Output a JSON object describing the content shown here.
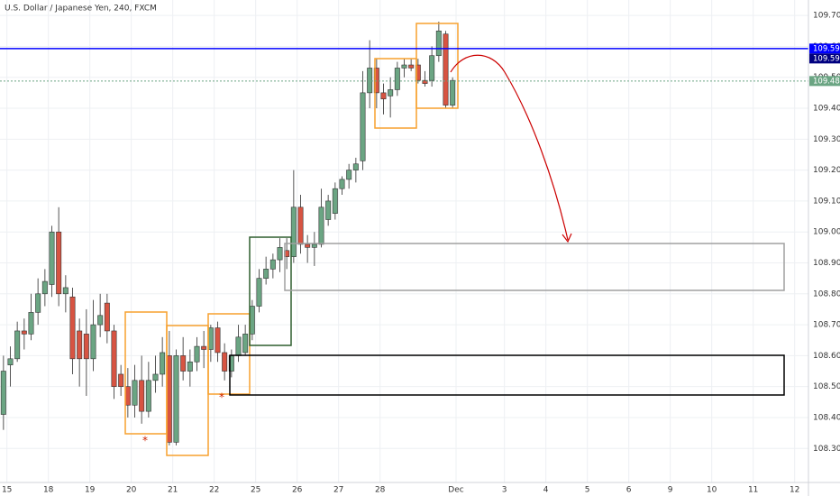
{
  "chart_data": {
    "type": "candlestick",
    "title": "U.S. Dollar / Japanese Yen, 240, FXCM",
    "up_color": "#6ba583",
    "down_color": "#d75442",
    "grid": true,
    "ylim": [
      108.19,
      109.75
    ],
    "yticks": [
      {
        "value": 108.3,
        "label": "108.300"
      },
      {
        "value": 108.4,
        "label": "108.400"
      },
      {
        "value": 108.5,
        "label": "108.500"
      },
      {
        "value": 108.6,
        "label": "108.600"
      },
      {
        "value": 108.7,
        "label": "108.700"
      },
      {
        "value": 108.8,
        "label": "108.800"
      },
      {
        "value": 108.9,
        "label": "108.900"
      },
      {
        "value": 109.0,
        "label": "109.000"
      },
      {
        "value": 109.1,
        "label": "109.100"
      },
      {
        "value": 109.2,
        "label": "109.200"
      },
      {
        "value": 109.3,
        "label": "109.300"
      },
      {
        "value": 109.4,
        "label": "109.400"
      },
      {
        "value": 109.5,
        "label": "109.500"
      },
      {
        "value": 109.6,
        "label": "109.600"
      },
      {
        "value": 109.7,
        "label": "109.700"
      }
    ],
    "xlim": [
      0,
      117
    ],
    "xticks": [
      {
        "value": 1,
        "label": "15"
      },
      {
        "value": 7,
        "label": "18"
      },
      {
        "value": 13,
        "label": "19"
      },
      {
        "value": 19,
        "label": "20"
      },
      {
        "value": 25,
        "label": "21"
      },
      {
        "value": 31,
        "label": "22"
      },
      {
        "value": 37,
        "label": "25"
      },
      {
        "value": 43,
        "label": "26"
      },
      {
        "value": 49,
        "label": "27"
      },
      {
        "value": 55,
        "label": "28"
      },
      {
        "value": 66,
        "label": "Dec"
      },
      {
        "value": 73,
        "label": "3"
      },
      {
        "value": 79,
        "label": "4"
      },
      {
        "value": 85,
        "label": "5"
      },
      {
        "value": 91,
        "label": "6"
      },
      {
        "value": 97,
        "label": "9"
      },
      {
        "value": 103,
        "label": "10"
      },
      {
        "value": 109,
        "label": "11"
      },
      {
        "value": 115,
        "label": "12"
      }
    ],
    "hlines": [
      {
        "value": 109.593,
        "color": "#0000ff"
      },
      {
        "value": 109.488,
        "color": "#6ba583"
      }
    ],
    "candles": [
      {
        "open": 108.41,
        "high": 108.6,
        "low": 108.36,
        "close": 108.55
      },
      {
        "open": 108.57,
        "high": 108.63,
        "low": 108.5,
        "close": 108.59
      },
      {
        "open": 108.59,
        "high": 108.71,
        "low": 108.58,
        "close": 108.68
      },
      {
        "open": 108.68,
        "high": 108.72,
        "low": 108.62,
        "close": 108.67
      },
      {
        "open": 108.67,
        "high": 108.8,
        "low": 108.65,
        "close": 108.74
      },
      {
        "open": 108.74,
        "high": 108.85,
        "low": 108.7,
        "close": 108.8
      },
      {
        "open": 108.8,
        "high": 108.88,
        "low": 108.76,
        "close": 108.84
      },
      {
        "open": 108.83,
        "high": 109.02,
        "low": 108.79,
        "close": 109.0
      },
      {
        "open": 109.0,
        "high": 109.08,
        "low": 108.76,
        "close": 108.8
      },
      {
        "open": 108.8,
        "high": 108.86,
        "low": 108.74,
        "close": 108.82
      },
      {
        "open": 108.79,
        "high": 108.82,
        "low": 108.54,
        "close": 108.59
      },
      {
        "open": 108.68,
        "high": 108.72,
        "low": 108.5,
        "close": 108.59
      },
      {
        "open": 108.67,
        "high": 108.75,
        "low": 108.47,
        "close": 108.59
      },
      {
        "open": 108.59,
        "high": 108.78,
        "low": 108.55,
        "close": 108.7
      },
      {
        "open": 108.7,
        "high": 108.8,
        "low": 108.66,
        "close": 108.73
      },
      {
        "open": 108.77,
        "high": 108.8,
        "low": 108.64,
        "close": 108.68
      },
      {
        "open": 108.68,
        "high": 108.7,
        "low": 108.46,
        "close": 108.5
      },
      {
        "open": 108.54,
        "high": 108.57,
        "low": 108.47,
        "close": 108.5
      },
      {
        "open": 108.5,
        "high": 108.56,
        "low": 108.4,
        "close": 108.44
      },
      {
        "open": 108.44,
        "high": 108.57,
        "low": 108.4,
        "close": 108.52
      },
      {
        "open": 108.52,
        "high": 108.6,
        "low": 108.38,
        "close": 108.42
      },
      {
        "open": 108.42,
        "high": 108.58,
        "low": 108.4,
        "close": 108.52
      },
      {
        "open": 108.52,
        "high": 108.6,
        "low": 108.48,
        "close": 108.54
      },
      {
        "open": 108.54,
        "high": 108.66,
        "low": 108.5,
        "close": 108.61
      },
      {
        "open": 108.6,
        "high": 108.68,
        "low": 108.31,
        "close": 108.32
      },
      {
        "open": 108.32,
        "high": 108.62,
        "low": 108.31,
        "close": 108.6
      },
      {
        "open": 108.6,
        "high": 108.66,
        "low": 108.52,
        "close": 108.55
      },
      {
        "open": 108.55,
        "high": 108.62,
        "low": 108.5,
        "close": 108.58
      },
      {
        "open": 108.58,
        "high": 108.66,
        "low": 108.55,
        "close": 108.63
      },
      {
        "open": 108.63,
        "high": 108.68,
        "low": 108.56,
        "close": 108.62
      },
      {
        "open": 108.62,
        "high": 108.7,
        "low": 108.58,
        "close": 108.69
      },
      {
        "open": 108.69,
        "high": 108.71,
        "low": 108.58,
        "close": 108.61
      },
      {
        "open": 108.61,
        "high": 108.64,
        "low": 108.52,
        "close": 108.55
      },
      {
        "open": 108.55,
        "high": 108.62,
        "low": 108.53,
        "close": 108.6
      },
      {
        "open": 108.6,
        "high": 108.7,
        "low": 108.58,
        "close": 108.66
      },
      {
        "open": 108.61,
        "high": 108.7,
        "low": 108.6,
        "close": 108.67
      },
      {
        "open": 108.67,
        "high": 108.78,
        "low": 108.65,
        "close": 108.76
      },
      {
        "open": 108.76,
        "high": 108.88,
        "low": 108.74,
        "close": 108.85
      },
      {
        "open": 108.85,
        "high": 108.92,
        "low": 108.83,
        "close": 108.88
      },
      {
        "open": 108.88,
        "high": 108.93,
        "low": 108.85,
        "close": 108.91
      },
      {
        "open": 108.91,
        "high": 108.98,
        "low": 108.87,
        "close": 108.95
      },
      {
        "open": 108.94,
        "high": 108.98,
        "low": 108.88,
        "close": 108.92
      },
      {
        "open": 108.92,
        "high": 109.2,
        "low": 108.9,
        "close": 109.08
      },
      {
        "open": 109.08,
        "high": 109.12,
        "low": 108.93,
        "close": 108.96
      },
      {
        "open": 108.96,
        "high": 108.99,
        "low": 108.9,
        "close": 108.95
      },
      {
        "open": 108.95,
        "high": 109.0,
        "low": 108.89,
        "close": 108.96
      },
      {
        "open": 108.96,
        "high": 109.14,
        "low": 108.95,
        "close": 109.08
      },
      {
        "open": 109.04,
        "high": 109.12,
        "low": 109.02,
        "close": 109.1
      },
      {
        "open": 109.06,
        "high": 109.16,
        "low": 109.04,
        "close": 109.14
      },
      {
        "open": 109.14,
        "high": 109.18,
        "low": 109.12,
        "close": 109.17
      },
      {
        "open": 109.17,
        "high": 109.22,
        "low": 109.14,
        "close": 109.2
      },
      {
        "open": 109.2,
        "high": 109.24,
        "low": 109.16,
        "close": 109.22
      },
      {
        "open": 109.23,
        "high": 109.52,
        "low": 109.2,
        "close": 109.45
      },
      {
        "open": 109.45,
        "high": 109.62,
        "low": 109.4,
        "close": 109.53
      },
      {
        "open": 109.53,
        "high": 109.56,
        "low": 109.4,
        "close": 109.45
      },
      {
        "open": 109.45,
        "high": 109.48,
        "low": 109.38,
        "close": 109.43
      },
      {
        "open": 109.44,
        "high": 109.5,
        "low": 109.37,
        "close": 109.46
      },
      {
        "open": 109.46,
        "high": 109.55,
        "low": 109.44,
        "close": 109.53
      },
      {
        "open": 109.53,
        "high": 109.56,
        "low": 109.5,
        "close": 109.54
      },
      {
        "open": 109.54,
        "high": 109.56,
        "low": 109.52,
        "close": 109.53
      },
      {
        "open": 109.54,
        "high": 109.56,
        "low": 109.48,
        "close": 109.49
      },
      {
        "open": 109.49,
        "high": 109.52,
        "low": 109.47,
        "close": 109.48
      },
      {
        "open": 109.49,
        "high": 109.6,
        "low": 109.47,
        "close": 109.57
      },
      {
        "open": 109.57,
        "high": 109.68,
        "low": 109.55,
        "close": 109.65
      },
      {
        "open": 109.64,
        "high": 109.65,
        "low": 109.4,
        "close": 109.41
      },
      {
        "open": 109.41,
        "high": 109.5,
        "low": 109.4,
        "close": 109.49
      }
    ]
  }
}
